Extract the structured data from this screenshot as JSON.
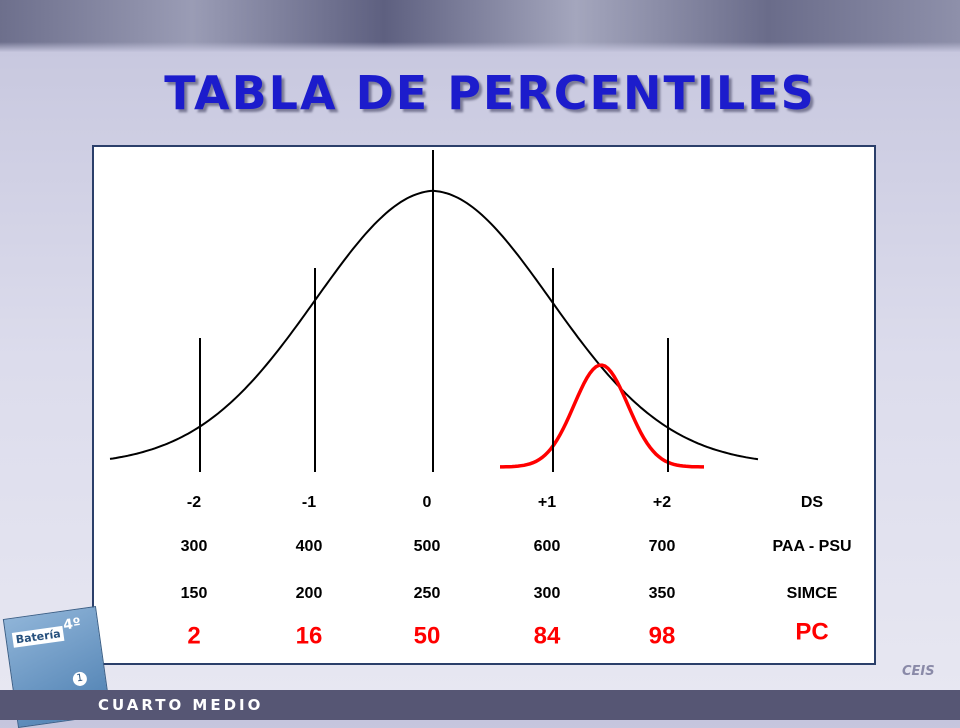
{
  "title": "TABLA DE PERCENTILES",
  "scale": {
    "rows": [
      {
        "label": "DS",
        "values": [
          "-2",
          "-1",
          "0",
          "+1",
          "+2"
        ]
      },
      {
        "label": "PAA - PSU",
        "values": [
          "300",
          "400",
          "500",
          "600",
          "700"
        ]
      },
      {
        "label": "SIMCE",
        "values": [
          "150",
          "200",
          "250",
          "300",
          "350"
        ]
      },
      {
        "label": "PC",
        "values": [
          "2",
          "16",
          "50",
          "84",
          "98"
        ]
      }
    ]
  },
  "book": {
    "title": "Batería",
    "grade": "4º",
    "volume": "1"
  },
  "logo": "CEIS",
  "footer": "CUARTO MEDIO"
}
